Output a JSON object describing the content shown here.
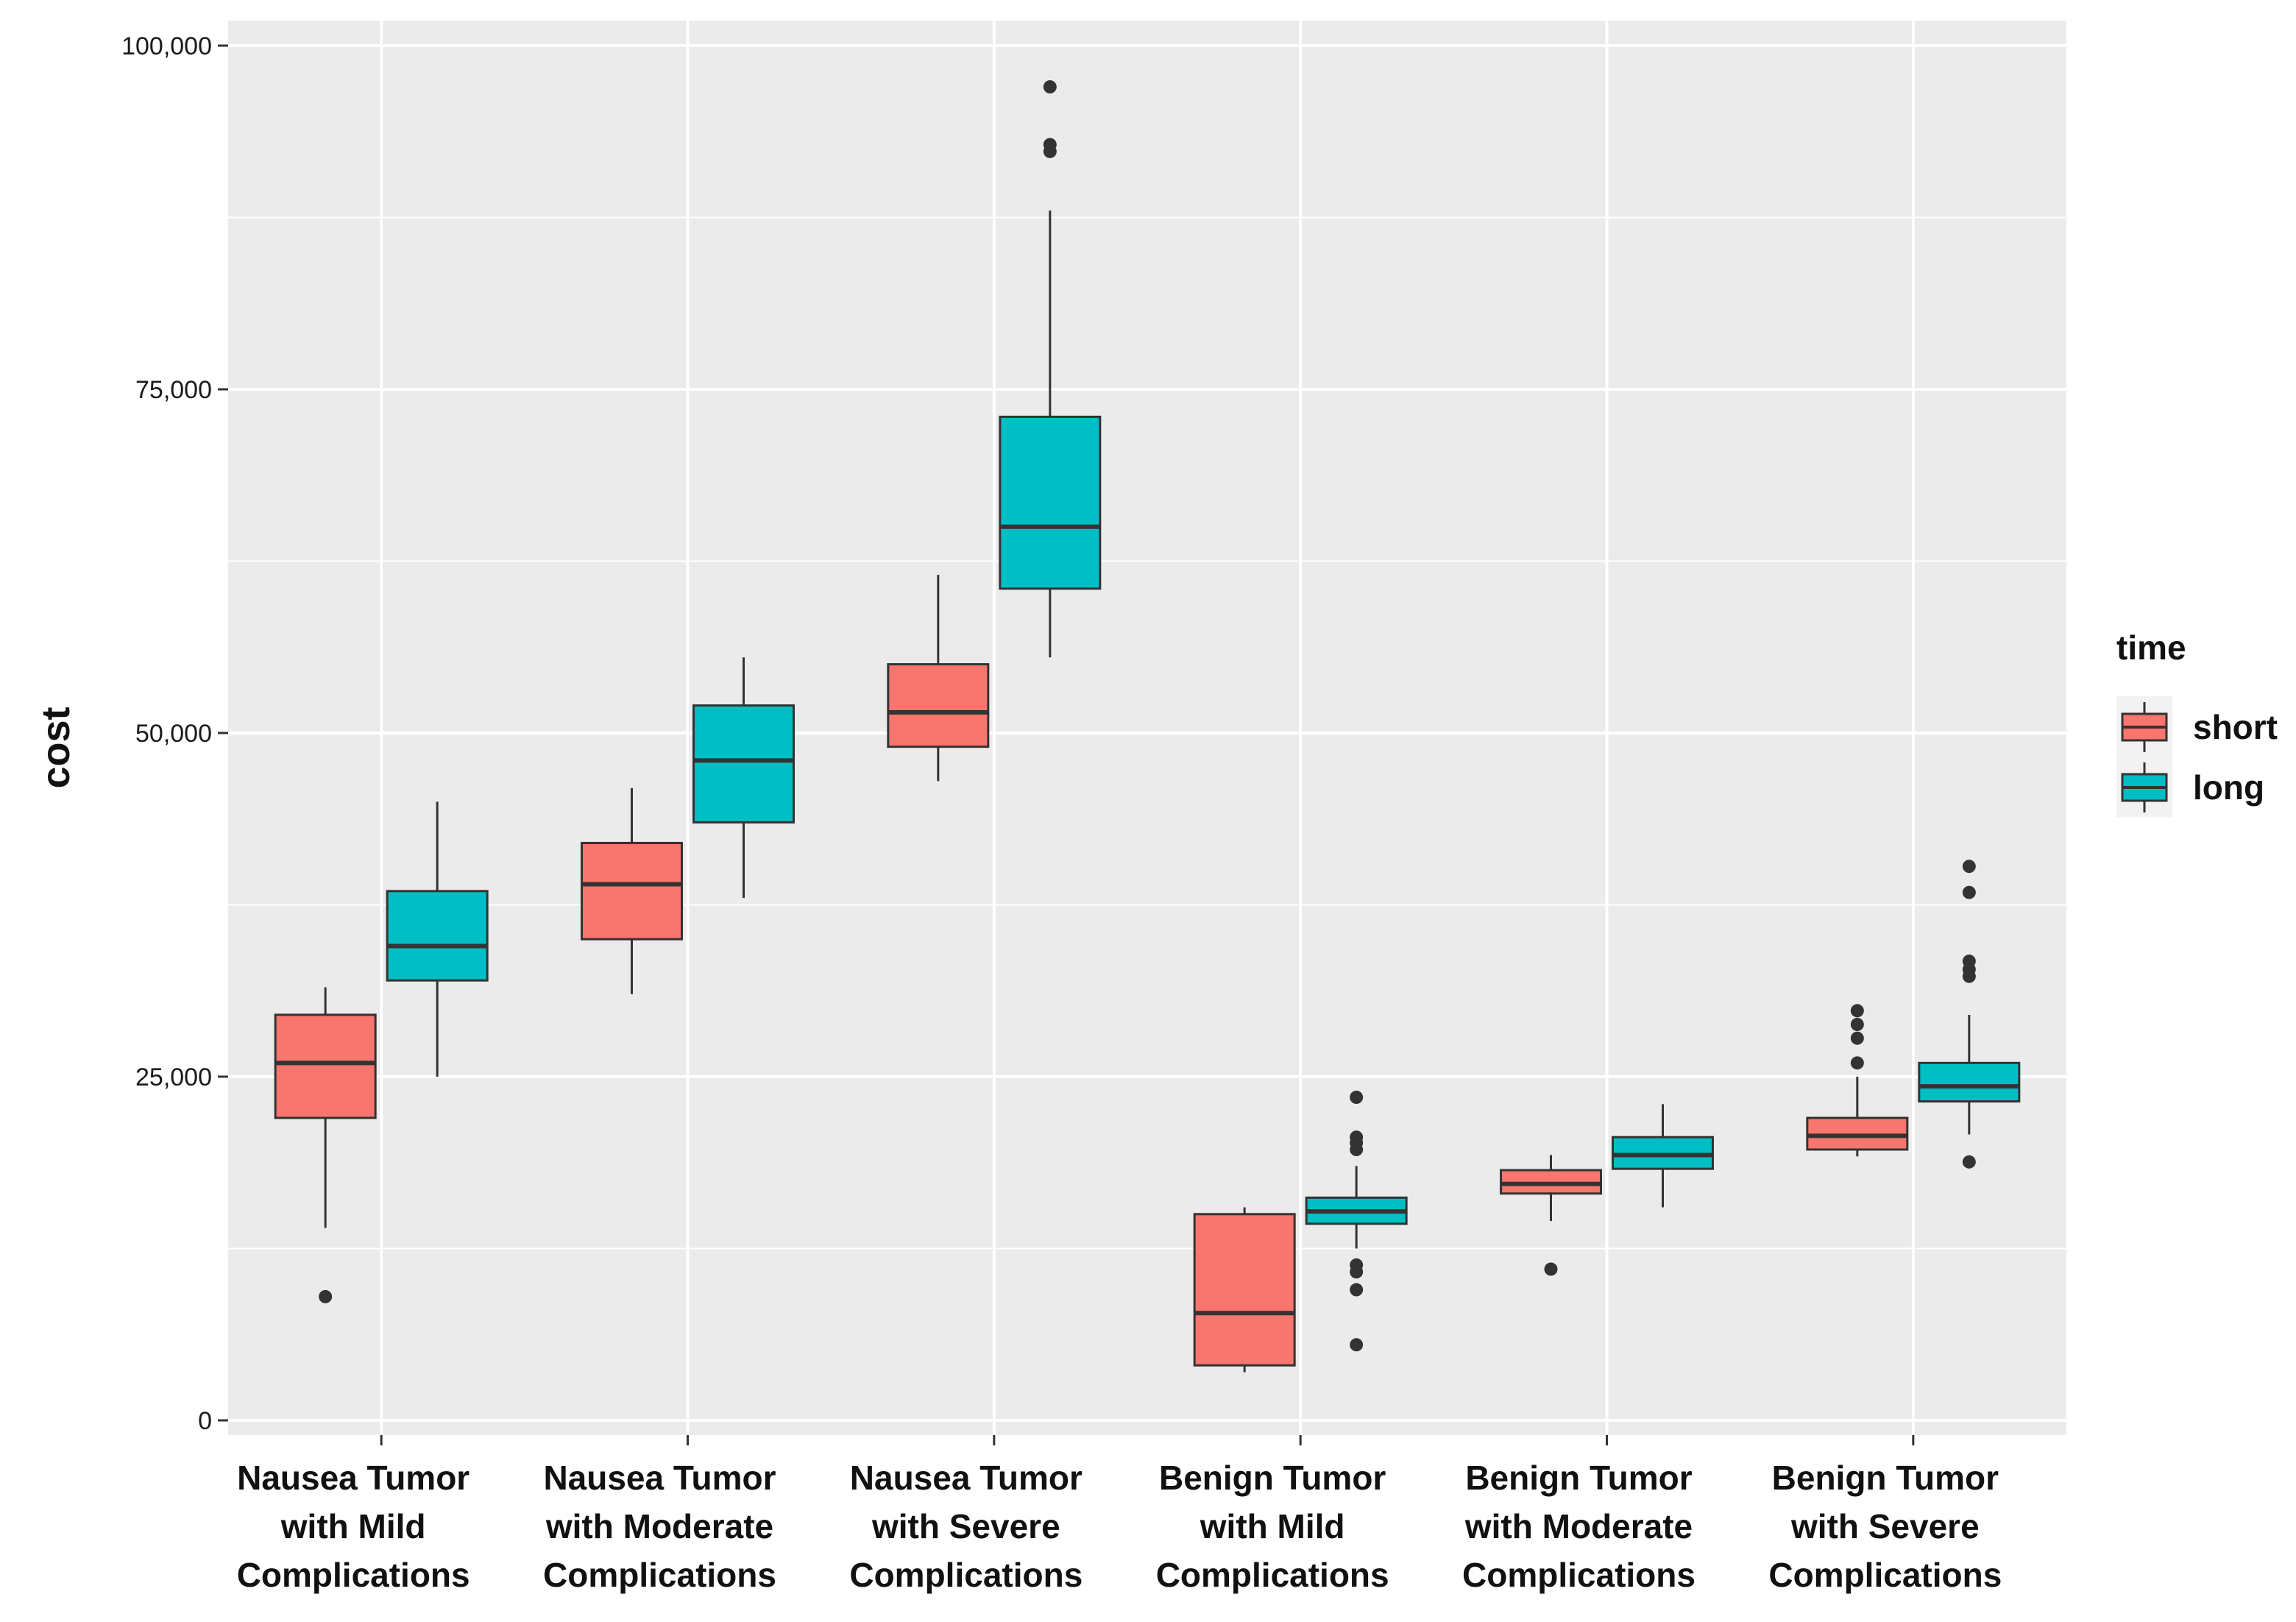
{
  "chart_data": {
    "type": "box",
    "title": "",
    "xlabel": "",
    "ylabel": "cost",
    "ylim": [
      0,
      100000
    ],
    "yticks": [
      0,
      25000,
      50000,
      75000,
      100000
    ],
    "ytick_labels": [
      "0",
      "25,000",
      "50,000",
      "75,000",
      "100,000"
    ],
    "grid": true,
    "legend": {
      "title": "time",
      "placement": "right",
      "entries": [
        "short",
        "long"
      ]
    },
    "categories": [
      [
        "Nausea Tumor",
        "with Mild",
        "Complications"
      ],
      [
        "Nausea Tumor",
        "with Moderate",
        "Complications"
      ],
      [
        "Nausea Tumor",
        "with Severe",
        "Complications"
      ],
      [
        "Benign Tumor",
        "with Mild",
        "Complications"
      ],
      [
        "Benign Tumor",
        "with Moderate",
        "Complications"
      ],
      [
        "Benign Tumor",
        "with Severe",
        "Complications"
      ]
    ],
    "series": [
      {
        "name": "short",
        "color": "#F8766D",
        "boxes": [
          {
            "whisker_low": 14000,
            "q1": 22000,
            "median": 26000,
            "q3": 29500,
            "whisker_high": 31500,
            "outliers": [
              9000
            ]
          },
          {
            "whisker_low": 31000,
            "q1": 35000,
            "median": 39000,
            "q3": 42000,
            "whisker_high": 46000,
            "outliers": []
          },
          {
            "whisker_low": 46500,
            "q1": 49000,
            "median": 51500,
            "q3": 55000,
            "whisker_high": 61500,
            "outliers": []
          },
          {
            "whisker_low": 3500,
            "q1": 4000,
            "median": 7800,
            "q3": 15000,
            "whisker_high": 15500,
            "outliers": []
          },
          {
            "whisker_low": 14500,
            "q1": 16500,
            "median": 17200,
            "q3": 18200,
            "whisker_high": 19300,
            "outliers": [
              11000
            ]
          },
          {
            "whisker_low": 19200,
            "q1": 19700,
            "median": 20700,
            "q3": 22000,
            "whisker_high": 25000,
            "outliers": [
              26000,
              27800,
              28800,
              29800
            ]
          }
        ]
      },
      {
        "name": "long",
        "color": "#00BFC4",
        "boxes": [
          {
            "whisker_low": 25000,
            "q1": 32000,
            "median": 34500,
            "q3": 38500,
            "whisker_high": 45000,
            "outliers": []
          },
          {
            "whisker_low": 38000,
            "q1": 43500,
            "median": 48000,
            "q3": 52000,
            "whisker_high": 55500,
            "outliers": []
          },
          {
            "whisker_low": 55500,
            "q1": 60500,
            "median": 65000,
            "q3": 73000,
            "whisker_high": 88000,
            "outliers": [
              92300,
              92800,
              97000
            ]
          },
          {
            "whisker_low": 12500,
            "q1": 14300,
            "median": 15200,
            "q3": 16200,
            "whisker_high": 18500,
            "outliers": [
              5500,
              9500,
              10800,
              11300,
              19700,
              20200,
              20600,
              23500
            ]
          },
          {
            "whisker_low": 15500,
            "q1": 18300,
            "median": 19300,
            "q3": 20600,
            "whisker_high": 23000,
            "outliers": []
          },
          {
            "whisker_low": 20800,
            "q1": 23200,
            "median": 24300,
            "q3": 26000,
            "whisker_high": 29500,
            "outliers": [
              18800,
              32300,
              32800,
              33400,
              38400,
              40300
            ]
          }
        ]
      }
    ]
  }
}
